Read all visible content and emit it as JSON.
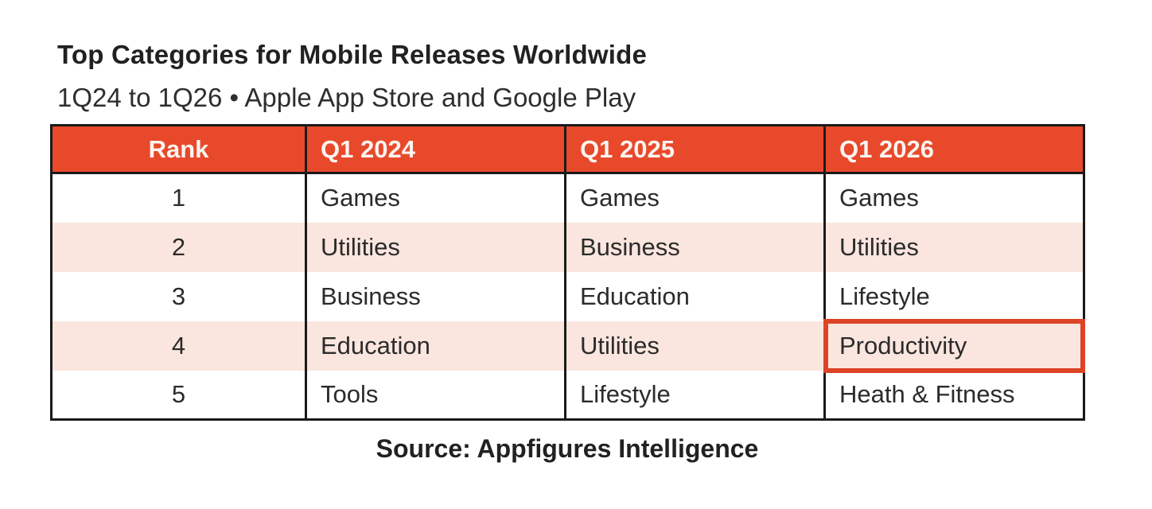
{
  "chart_data": {
    "type": "table",
    "title": "Top Categories for Mobile Releases Worldwide",
    "subtitle": "1Q24 to 1Q26 • Apple App Store and Google Play",
    "source": "Source: Appfigures Intelligence",
    "columns": [
      "Rank",
      "Q1 2024",
      "Q1 2025",
      "Q1 2026"
    ],
    "rows": [
      [
        "1",
        "Games",
        "Games",
        "Games"
      ],
      [
        "2",
        "Utilities",
        "Business",
        "Utilities"
      ],
      [
        "3",
        "Business",
        "Education",
        "Lifestyle"
      ],
      [
        "4",
        "Education",
        "Utilities",
        "Productivity"
      ],
      [
        "5",
        "Tools",
        "Lifestyle",
        "Heath & Fitness"
      ]
    ],
    "highlight": {
      "row": 4,
      "column": "Q1 2026",
      "value": "Productivity"
    },
    "layout_hints": {
      "striped_rows": "even rows shaded",
      "legend_position": "none",
      "grid": "vertical column rules and outer border only"
    }
  },
  "colors": {
    "header_bg": "#E8492B",
    "header_text": "#FBF5F0",
    "stripe_bg": "#FAE6DE",
    "highlight_border": "#DC4426",
    "table_border": "#1A1A1A",
    "body_text": "#2B2B2B",
    "page_bg": "#FFFFFF"
  }
}
